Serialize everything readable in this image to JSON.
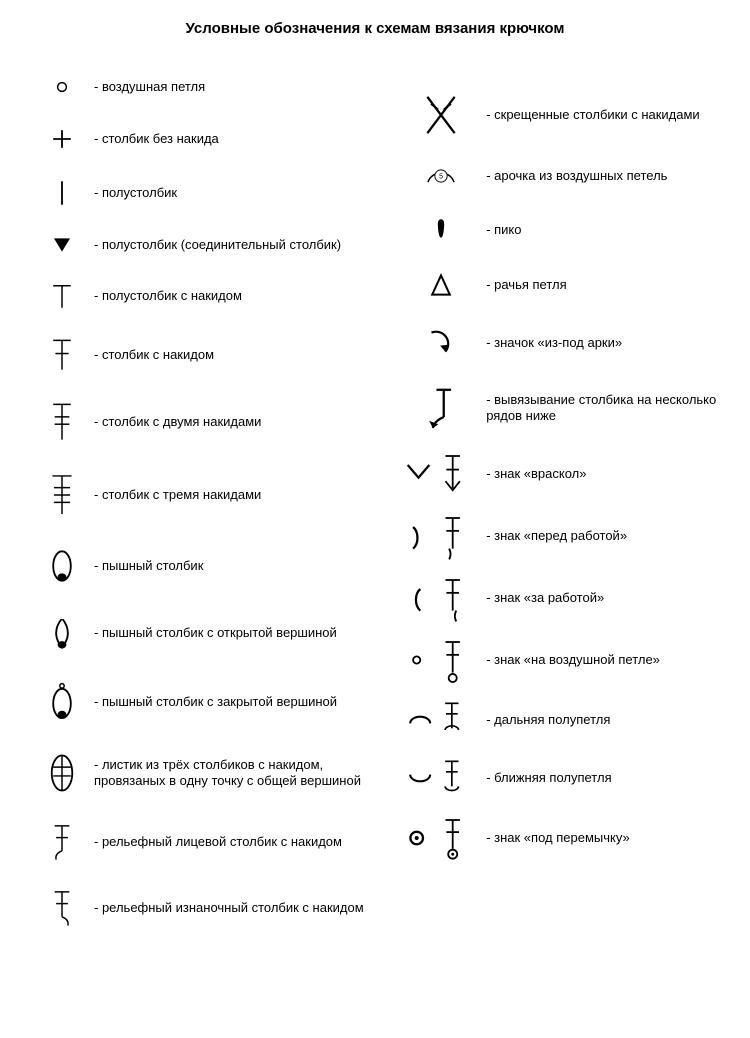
{
  "title": "Условные обозначения к схемам вязания крючком",
  "stroke": "#000000",
  "fill": "#000000",
  "bg": "#ffffff",
  "font_size_title": 15,
  "font_size_label": 13,
  "left": [
    {
      "id": "chain",
      "label": "- воздушная петля",
      "h": 44
    },
    {
      "id": "sc",
      "label": "- столбик без накида",
      "h": 44
    },
    {
      "id": "slip",
      "label": "- полустолбик",
      "h": 48
    },
    {
      "id": "slip-join",
      "label": "- полустолбик (соединительный столбик)",
      "h": 40
    },
    {
      "id": "hdc",
      "label": "- полустолбик с накидом",
      "h": 46
    },
    {
      "id": "dc",
      "label": "- столбик с накидом",
      "h": 56
    },
    {
      "id": "tr",
      "label": "- столбик с двумя накидами",
      "h": 62
    },
    {
      "id": "dtr",
      "label": "- столбик с тремя накидами",
      "h": 68
    },
    {
      "id": "puff",
      "label": "- пышный столбик",
      "h": 58
    },
    {
      "id": "puff-open",
      "label": "- пышный столбик с открытой вершиной",
      "h": 60
    },
    {
      "id": "puff-closed",
      "label": "- пышный столбик с закрытой вершиной",
      "h": 62
    },
    {
      "id": "leaf3dc",
      "label": "- листик из трёх столбиков с накидом, провязаных в одну точку с общей вершиной",
      "h": 64
    },
    {
      "id": "fpdc",
      "label": "- рельефный лицевой столбик с накидом",
      "h": 58
    },
    {
      "id": "bpdc",
      "label": "- рельефный изнаночный столбик с накидом",
      "h": 58
    }
  ],
  "right": [
    {
      "id": "crossed",
      "label": "- скрещенные столбики с накидами",
      "h": 60
    },
    {
      "id": "arch5",
      "label": "- арочка из воздушных петель",
      "h": 46,
      "num": "5"
    },
    {
      "id": "picot",
      "label": "- пико",
      "h": 46
    },
    {
      "id": "crab",
      "label": "- рачья петля",
      "h": 48
    },
    {
      "id": "under-arch",
      "label": "- значок «из-под арки»",
      "h": 52
    },
    {
      "id": "rows-below",
      "label": "- вывязывание столбика на несколько рядов ниже",
      "h": 62
    },
    {
      "id": "split",
      "label": "- знак «враскол»",
      "h": 54
    },
    {
      "id": "front-work",
      "label": "- знак «перед работой»",
      "h": 54
    },
    {
      "id": "back-work",
      "label": "- знак «за работой»",
      "h": 54
    },
    {
      "id": "on-chain",
      "label": "- знак «на воздушной петле»",
      "h": 54
    },
    {
      "id": "far-halfloop",
      "label": "- дальняя полупетля",
      "h": 50
    },
    {
      "id": "near-halfloop",
      "label": "- ближняя полупетля",
      "h": 50
    },
    {
      "id": "under-bar",
      "label": "- знак «под перемычку»",
      "h": 54
    }
  ]
}
